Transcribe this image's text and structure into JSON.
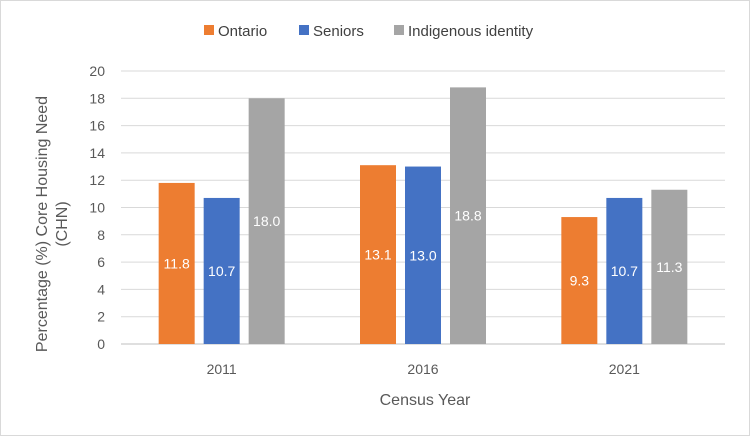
{
  "chart_data": {
    "type": "bar",
    "title": "",
    "categories": [
      "2011",
      "2016",
      "2021"
    ],
    "series": [
      {
        "name": "Ontario",
        "color": "#ED7D31",
        "values": [
          11.8,
          13.1,
          9.3
        ]
      },
      {
        "name": "Seniors",
        "color": "#4472C4",
        "values": [
          10.7,
          13.0,
          10.7
        ]
      },
      {
        "name": "Indigenous identity",
        "color": "#A5A5A5",
        "values": [
          18.0,
          18.8,
          11.3
        ]
      }
    ],
    "xlabel": "Census Year",
    "ylabel_lines": [
      "Percentage (%) Core Housing Need",
      "(CHN)"
    ],
    "ylim": [
      0,
      20
    ],
    "ytick_step": 2,
    "grid": true,
    "legend": "top-center"
  }
}
